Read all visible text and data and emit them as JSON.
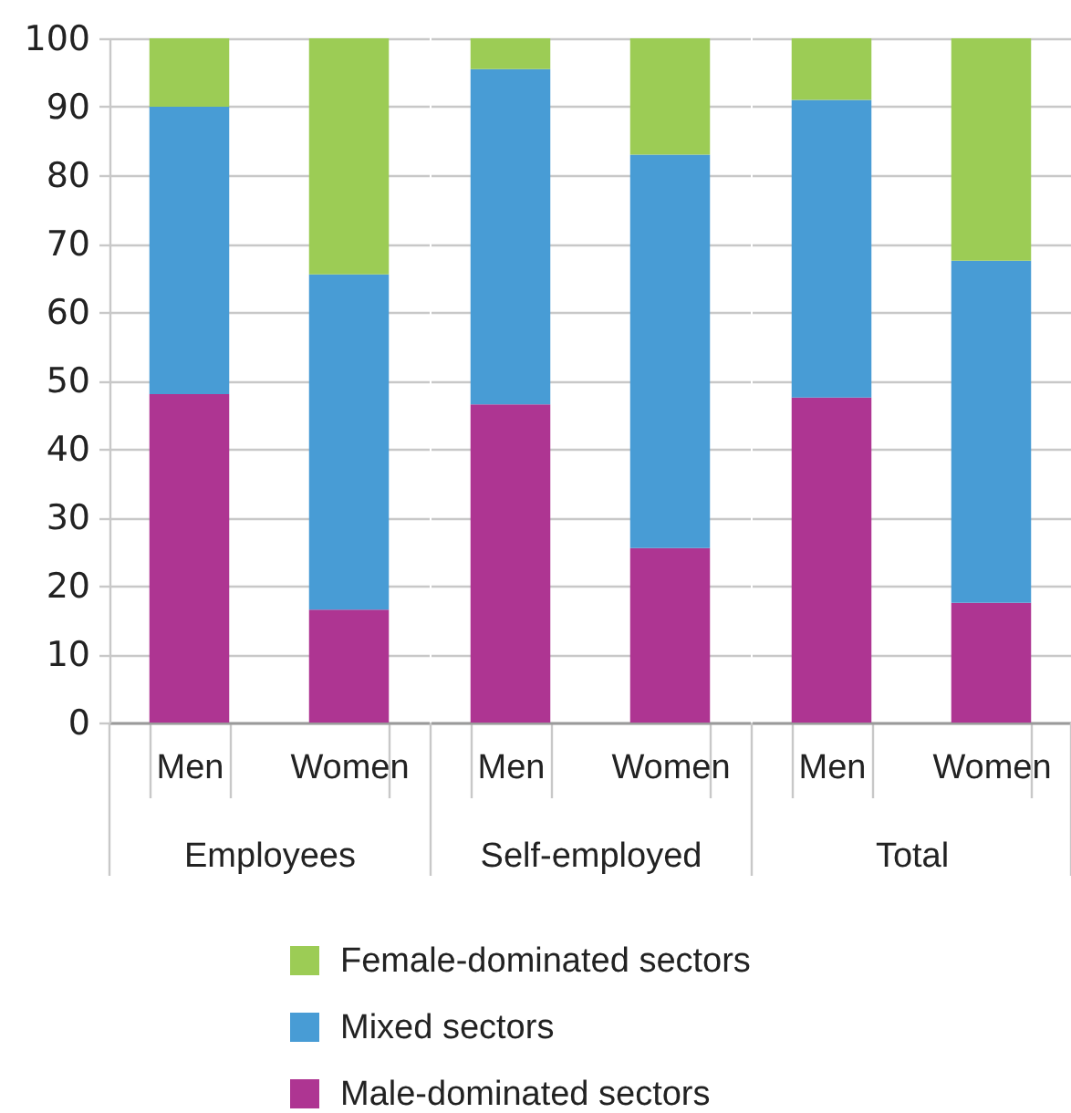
{
  "chart_data": [
    {
      "type": "bar",
      "stacked": true,
      "categories": [
        "Men",
        "Women"
      ],
      "xlabel": "Employees",
      "series": [
        {
          "name": "Male-dominated sectors",
          "color": "#ae3592",
          "values": [
            48,
            16.5
          ]
        },
        {
          "name": "Mixed sectors",
          "color": "#489cd5",
          "values": [
            42,
            49
          ]
        },
        {
          "name": "Female-dominated sectors",
          "color": "#9ccc55",
          "values": [
            10,
            34.5
          ]
        }
      ],
      "ylim": [
        0,
        100
      ],
      "yticks": [
        0,
        10,
        20,
        30,
        40,
        50,
        60,
        70,
        80,
        90,
        100
      ],
      "grid": "y",
      "legend": "bottom"
    },
    {
      "type": "bar",
      "stacked": true,
      "categories": [
        "Men",
        "Women"
      ],
      "xlabel": "Self-employed",
      "series": [
        {
          "name": "Male-dominated sectors",
          "color": "#ae3592",
          "values": [
            46.5,
            25.5
          ]
        },
        {
          "name": "Mixed sectors",
          "color": "#489cd5",
          "values": [
            49,
            57.5
          ]
        },
        {
          "name": "Female-dominated sectors",
          "color": "#9ccc55",
          "values": [
            4.5,
            17
          ]
        }
      ],
      "ylim": [
        0,
        100
      ],
      "yticks": [
        0,
        10,
        20,
        30,
        40,
        50,
        60,
        70,
        80,
        90,
        100
      ],
      "grid": "y",
      "tick_labels": "x"
    },
    {
      "type": "bar",
      "stacked": true,
      "categories": [
        "Men",
        "Women"
      ],
      "xlabel": "Total",
      "series": [
        {
          "name": "Male-dominated sectors",
          "color": "#ae3592",
          "values": [
            47.5,
            17.5
          ]
        },
        {
          "name": "Mixed sectors",
          "color": "#489cd5",
          "values": [
            43.5,
            50
          ]
        },
        {
          "name": "Female-dominated sectors",
          "color": "#9ccc55",
          "values": [
            9,
            32.5
          ]
        }
      ],
      "ylim": [
        0,
        100
      ],
      "yticks": [
        0,
        10,
        20,
        30,
        40,
        50,
        60,
        70,
        80,
        90,
        100
      ],
      "grid": "y",
      "tick_labels": "x"
    }
  ]
}
